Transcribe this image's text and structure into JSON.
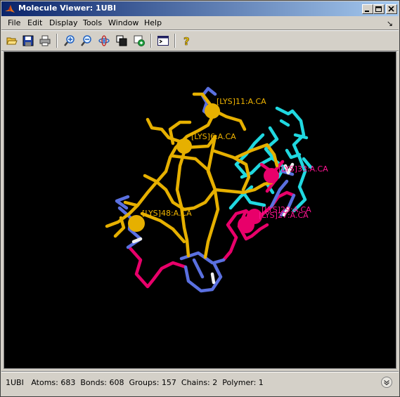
{
  "window": {
    "title": "Molecule Viewer: 1UBI",
    "controls": [
      "minimize",
      "maximize",
      "close"
    ]
  },
  "menubar": {
    "items": [
      "File",
      "Edit",
      "Display",
      "Tools",
      "Window",
      "Help"
    ],
    "dock_glyph": "↘"
  },
  "toolbar": {
    "buttons": [
      {
        "name": "open-icon"
      },
      {
        "name": "save-icon"
      },
      {
        "name": "print-icon"
      },
      {
        "name": "zoom-in-icon"
      },
      {
        "name": "zoom-out-icon"
      },
      {
        "name": "rotate-icon"
      },
      {
        "name": "copy-icon"
      },
      {
        "name": "export-icon"
      },
      {
        "name": "console-icon"
      },
      {
        "name": "help-icon"
      }
    ]
  },
  "viewer": {
    "labels": [
      {
        "text": "[LYS]11:A.CA",
        "color": "#f0b400"
      },
      {
        "text": "[LYS]6:A.CA",
        "color": "#f0b400"
      },
      {
        "text": "[LYS]48:A.CA",
        "color": "#f0b400"
      },
      {
        "text": "[LYS]33:A.CA",
        "color": "#ff1493"
      },
      {
        "text": "[LYS]29:A.CA",
        "color": "#ff1493"
      },
      {
        "text": "[LYS]27:A.CA",
        "color": "#ff1493"
      }
    ],
    "colors": {
      "yellow": "#e6b000",
      "blue": "#5a70e0",
      "magenta": "#e8006a",
      "cyan": "#20d8e0",
      "white": "#f0f0f0",
      "background": "#000000"
    }
  },
  "status": {
    "text": "1UBI   Atoms: 683  Bonds: 608  Groups: 157  Chains: 2  Polymer: 1"
  }
}
